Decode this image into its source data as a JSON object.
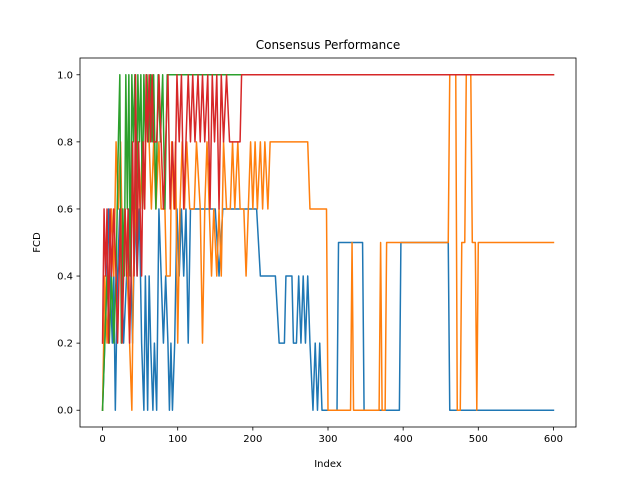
{
  "chart_data": {
    "type": "line",
    "title": "Consensus Performance",
    "xlabel": "Index",
    "ylabel": "FCD",
    "xlim": [
      -30,
      630
    ],
    "ylim": [
      -0.05,
      1.05
    ],
    "xticks": [
      0,
      100,
      200,
      300,
      400,
      500,
      600
    ],
    "xtick_labels": [
      "0",
      "100",
      "200",
      "300",
      "400",
      "500",
      "600"
    ],
    "yticks": [
      0.0,
      0.2,
      0.4,
      0.6,
      0.8,
      1.0
    ],
    "ytick_labels": [
      "0.0",
      "0.2",
      "0.4",
      "0.6",
      "0.8",
      "1.0"
    ],
    "grid": false,
    "legend": "none",
    "series": [
      {
        "color": "#1f77b4",
        "points": [
          [
            0,
            0
          ],
          [
            3,
            0.2
          ],
          [
            6,
            0.4
          ],
          [
            8,
            0.6
          ],
          [
            10,
            0.4
          ],
          [
            13,
            0.2
          ],
          [
            15,
            0.4
          ],
          [
            17,
            0
          ],
          [
            20,
            0.4
          ],
          [
            23,
            0.6
          ],
          [
            26,
            0.4
          ],
          [
            28,
            0.2
          ],
          [
            32,
            0.4
          ],
          [
            35,
            0.6
          ],
          [
            38,
            0.4
          ],
          [
            40,
            0.2
          ],
          [
            43,
            0.6
          ],
          [
            46,
            0.4
          ],
          [
            49,
            0.6
          ],
          [
            52,
            0.2
          ],
          [
            55,
            0
          ],
          [
            57,
            0.4
          ],
          [
            60,
            0
          ],
          [
            62,
            0.4
          ],
          [
            64,
            0.2
          ],
          [
            67,
            0
          ],
          [
            69,
            0.2
          ],
          [
            72,
            0
          ],
          [
            75,
            0.6
          ],
          [
            78,
            0.4
          ],
          [
            81,
            0.2
          ],
          [
            84,
            0.4
          ],
          [
            87,
            0.2
          ],
          [
            89,
            0
          ],
          [
            91,
            0.2
          ],
          [
            93,
            0
          ],
          [
            96,
            0.2
          ],
          [
            99,
            0.6
          ],
          [
            102,
            0.4
          ],
          [
            105,
            0.6
          ],
          [
            108,
            0.4
          ],
          [
            111,
            0.6
          ],
          [
            114,
            0.2
          ],
          [
            117,
            0.6
          ],
          [
            125,
            0.6
          ],
          [
            130,
            0.6
          ],
          [
            140,
            0.6
          ],
          [
            150,
            0.6
          ],
          [
            155,
            0.4
          ],
          [
            160,
            0.6
          ],
          [
            175,
            0.6
          ],
          [
            185,
            0.6
          ],
          [
            200,
            0.6
          ],
          [
            205,
            0.6
          ],
          [
            210,
            0.4
          ],
          [
            230,
            0.4
          ],
          [
            235,
            0.2
          ],
          [
            242,
            0.2
          ],
          [
            244,
            0.4
          ],
          [
            252,
            0.4
          ],
          [
            254,
            0.2
          ],
          [
            258,
            0.2
          ],
          [
            261,
            0.4
          ],
          [
            264,
            0.2
          ],
          [
            267,
            0.4
          ],
          [
            270,
            0.2
          ],
          [
            273,
            0.4
          ],
          [
            276,
            0.2
          ],
          [
            280,
            0
          ],
          [
            283,
            0.2
          ],
          [
            286,
            0
          ],
          [
            289,
            0.2
          ],
          [
            292,
            0
          ],
          [
            312,
            0
          ],
          [
            314,
            0.5
          ],
          [
            346,
            0.5
          ],
          [
            348,
            0
          ],
          [
            395,
            0
          ],
          [
            397,
            0.5
          ],
          [
            460,
            0.5
          ],
          [
            462,
            0
          ],
          [
            600,
            0
          ]
        ]
      },
      {
        "color": "#ff7f0e",
        "points": [
          [
            0,
            0
          ],
          [
            3,
            0.4
          ],
          [
            6,
            0.2
          ],
          [
            9,
            0.4
          ],
          [
            12,
            0.6
          ],
          [
            15,
            0.4
          ],
          [
            18,
            0.8
          ],
          [
            21,
            0.6
          ],
          [
            24,
            0.8
          ],
          [
            27,
            0.4
          ],
          [
            30,
            0.6
          ],
          [
            33,
            0.4
          ],
          [
            36,
            0.2
          ],
          [
            39,
            0
          ],
          [
            41,
            0.4
          ],
          [
            44,
            0.6
          ],
          [
            47,
            0.8
          ],
          [
            50,
            0.6
          ],
          [
            53,
            0.8
          ],
          [
            56,
            0.6
          ],
          [
            59,
            1
          ],
          [
            62,
            0.8
          ],
          [
            65,
            0.6
          ],
          [
            68,
            0.8
          ],
          [
            71,
            0.6
          ],
          [
            75,
            0.8
          ],
          [
            78,
            0.6
          ],
          [
            83,
            0.6
          ],
          [
            85,
            0.4
          ],
          [
            90,
            0.4
          ],
          [
            92,
            0.8
          ],
          [
            95,
            0.6
          ],
          [
            97,
            0.8
          ],
          [
            100,
            0.2
          ],
          [
            103,
            0.6
          ],
          [
            106,
            0.8
          ],
          [
            109,
            0.6
          ],
          [
            112,
            0.8
          ],
          [
            116,
            0.6
          ],
          [
            122,
            0.6
          ],
          [
            125,
            0.8
          ],
          [
            130,
            0.6
          ],
          [
            133,
            0.2
          ],
          [
            136,
            0.6
          ],
          [
            139,
            0.8
          ],
          [
            142,
            0.6
          ],
          [
            145,
            0.4
          ],
          [
            148,
            0.6
          ],
          [
            152,
            0.4
          ],
          [
            155,
            0.6
          ],
          [
            158,
            0.4
          ],
          [
            161,
            0.8
          ],
          [
            165,
            0.6
          ],
          [
            170,
            0.6
          ],
          [
            173,
            0.8
          ],
          [
            176,
            0.6
          ],
          [
            180,
            0.8
          ],
          [
            183,
            0.6
          ],
          [
            188,
            0.6
          ],
          [
            191,
            0.4
          ],
          [
            194,
            0.6
          ],
          [
            197,
            0.8
          ],
          [
            200,
            0.6
          ],
          [
            203,
            0.8
          ],
          [
            206,
            0.6
          ],
          [
            210,
            0.8
          ],
          [
            213,
            0.6
          ],
          [
            216,
            0.8
          ],
          [
            220,
            0.6
          ],
          [
            223,
            0.8
          ],
          [
            273,
            0.8
          ],
          [
            276,
            0.6
          ],
          [
            298,
            0.6
          ],
          [
            300,
            0
          ],
          [
            330,
            0
          ],
          [
            332,
            0.5
          ],
          [
            334,
            0
          ],
          [
            368,
            0
          ],
          [
            370,
            0.5
          ],
          [
            372,
            0
          ],
          [
            376,
            0
          ],
          [
            378,
            0.5
          ],
          [
            460,
            0.5
          ],
          [
            462,
            1
          ],
          [
            470,
            1
          ],
          [
            472,
            0
          ],
          [
            476,
            0
          ],
          [
            478,
            0.5
          ],
          [
            482,
            0.5
          ],
          [
            484,
            1
          ],
          [
            490,
            1
          ],
          [
            492,
            0.5
          ],
          [
            496,
            0.5
          ],
          [
            498,
            0
          ],
          [
            500,
            0.5
          ],
          [
            600,
            0.5
          ]
        ]
      },
      {
        "color": "#2ca02c",
        "points": [
          [
            0,
            0
          ],
          [
            3,
            0.2
          ],
          [
            6,
            0.4
          ],
          [
            9,
            0.2
          ],
          [
            12,
            0.4
          ],
          [
            15,
            0.2
          ],
          [
            18,
            0.4
          ],
          [
            21,
            0.8
          ],
          [
            23,
            1
          ],
          [
            25,
            0.2
          ],
          [
            27,
            0.6
          ],
          [
            29,
            0.4
          ],
          [
            31,
            1
          ],
          [
            33,
            0.6
          ],
          [
            35,
            1
          ],
          [
            37,
            0.4
          ],
          [
            39,
            1
          ],
          [
            41,
            0.8
          ],
          [
            43,
            1
          ],
          [
            45,
            0.6
          ],
          [
            47,
            1
          ],
          [
            49,
            0.8
          ],
          [
            51,
            1
          ],
          [
            53,
            0.6
          ],
          [
            55,
            1
          ],
          [
            57,
            0.8
          ],
          [
            59,
            1
          ],
          [
            61,
            0.8
          ],
          [
            64,
            1
          ],
          [
            66,
            0.8
          ],
          [
            68,
            1
          ],
          [
            71,
            0.6
          ],
          [
            74,
            1
          ],
          [
            77,
            0.8
          ],
          [
            80,
            1
          ],
          [
            83,
            0.6
          ],
          [
            86,
            1
          ],
          [
            90,
            1
          ],
          [
            95,
            1
          ],
          [
            100,
            1
          ],
          [
            105,
            1
          ],
          [
            110,
            1
          ],
          [
            600,
            1
          ]
        ]
      },
      {
        "color": "#d62728",
        "points": [
          [
            0,
            0.2
          ],
          [
            2,
            0.6
          ],
          [
            4,
            0.4
          ],
          [
            6,
            0.6
          ],
          [
            8,
            0.2
          ],
          [
            10,
            0.6
          ],
          [
            12,
            0.4
          ],
          [
            15,
            0.6
          ],
          [
            18,
            0.4
          ],
          [
            20,
            0.2
          ],
          [
            22,
            0.4
          ],
          [
            24,
            0.6
          ],
          [
            26,
            0.2
          ],
          [
            28,
            0.4
          ],
          [
            30,
            0.6
          ],
          [
            32,
            0.4
          ],
          [
            34,
            0.6
          ],
          [
            36,
            0.2
          ],
          [
            38,
            0.4
          ],
          [
            40,
            0.8
          ],
          [
            42,
            0.4
          ],
          [
            44,
            1
          ],
          [
            46,
            0.4
          ],
          [
            48,
            0.8
          ],
          [
            50,
            0.6
          ],
          [
            52,
            0.4
          ],
          [
            54,
            0.8
          ],
          [
            56,
            0.6
          ],
          [
            58,
            1
          ],
          [
            60,
            0.8
          ],
          [
            62,
            1
          ],
          [
            64,
            0.8
          ],
          [
            66,
            1
          ],
          [
            68,
            0.8
          ],
          [
            72,
            0.8
          ],
          [
            75,
            1
          ],
          [
            78,
            0.8
          ],
          [
            81,
            0.6
          ],
          [
            84,
            0.8
          ],
          [
            87,
            1
          ],
          [
            90,
            0.6
          ],
          [
            93,
            0.8
          ],
          [
            96,
            0.6
          ],
          [
            99,
            1
          ],
          [
            102,
            0.8
          ],
          [
            105,
            1
          ],
          [
            108,
            0.6
          ],
          [
            111,
            0.8
          ],
          [
            114,
            1
          ],
          [
            117,
            0.8
          ],
          [
            120,
            1
          ],
          [
            123,
            0.8
          ],
          [
            127,
            1
          ],
          [
            130,
            0.8
          ],
          [
            133,
            1
          ],
          [
            136,
            0.8
          ],
          [
            140,
            1
          ],
          [
            143,
            0.6
          ],
          [
            146,
            1
          ],
          [
            149,
            0.8
          ],
          [
            152,
            1
          ],
          [
            155,
            0.6
          ],
          [
            158,
            1
          ],
          [
            161,
            0.8
          ],
          [
            165,
            1
          ],
          [
            169,
            0.8
          ],
          [
            183,
            0.8
          ],
          [
            185,
            1
          ],
          [
            600,
            1
          ]
        ]
      }
    ]
  }
}
